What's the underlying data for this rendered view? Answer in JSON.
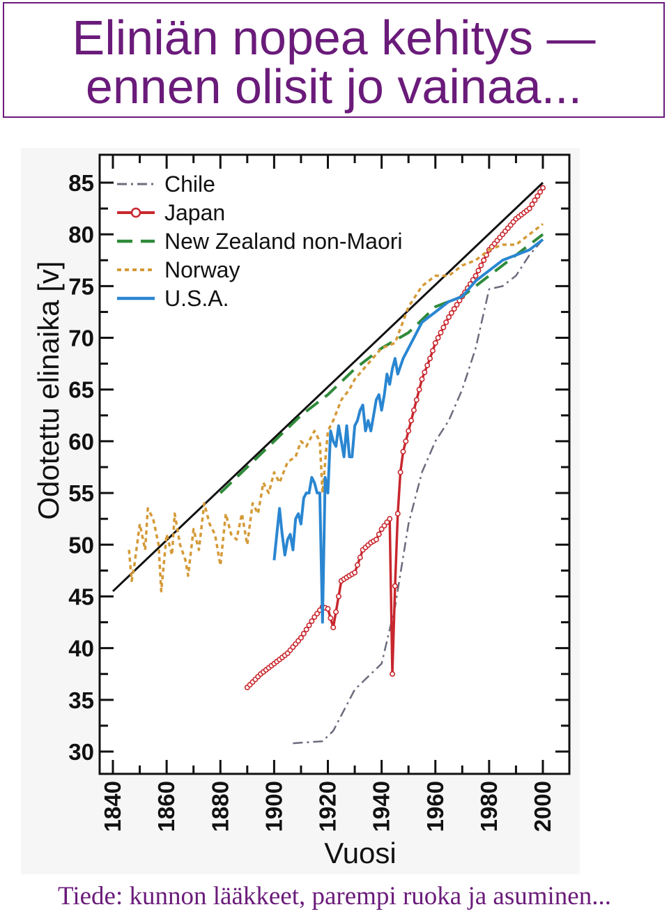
{
  "header": {
    "title_line1": "Eliniän nopea kehitys —",
    "title_line2": "ennen olisit jo vainaa..."
  },
  "footer": {
    "text": "Tiede: kunnon lääkkeet, parempi ruoka ja asuminen..."
  },
  "colors": {
    "title": "#6a1b7a",
    "chile": "#6b6b7d",
    "japan": "#c8272e",
    "new_zealand": "#2f8a3a",
    "norway": "#d49a38",
    "usa": "#2a86d1",
    "trend": "#111111"
  },
  "chart_data": {
    "type": "line",
    "title": "",
    "xlabel": "Vuosi",
    "ylabel": "Odotettu elinaika [v]",
    "xlim": [
      1835,
      2010
    ],
    "ylim": [
      28,
      87
    ],
    "xticks": [
      1840,
      1860,
      1880,
      1900,
      1920,
      1940,
      1960,
      1980,
      2000
    ],
    "yticks": [
      30,
      35,
      40,
      45,
      50,
      55,
      60,
      65,
      70,
      75,
      80,
      85
    ],
    "grid": false,
    "legend_position": "top-left",
    "series": [
      {
        "name": "Chile",
        "style": "dashdot",
        "color": "#6b6b7d",
        "x": [
          1907,
          1918,
          1922,
          1930,
          1940,
          1945,
          1950,
          1955,
          1960,
          1965,
          1970,
          1975,
          1980,
          1985,
          1990,
          1995,
          2000
        ],
        "y": [
          30.8,
          31,
          32,
          36,
          38.5,
          44,
          52,
          57,
          60,
          62,
          65,
          69,
          74.7,
          75,
          76,
          78,
          79.5
        ]
      },
      {
        "name": "Japan",
        "style": "line-circles",
        "color": "#c8272e",
        "x": [
          1890,
          1895,
          1900,
          1905,
          1910,
          1915,
          1918,
          1920,
          1922,
          1925,
          1928,
          1930,
          1933,
          1936,
          1938,
          1940,
          1943,
          1944,
          1945,
          1946,
          1947,
          1948,
          1950,
          1952,
          1955,
          1958,
          1960,
          1963,
          1965,
          1970,
          1975,
          1980,
          1985,
          1990,
          1995,
          2000
        ],
        "y": [
          36.2,
          37.5,
          38.5,
          39.5,
          41,
          43,
          44,
          43.8,
          42,
          46.5,
          47,
          47.3,
          49.5,
          50.2,
          50.5,
          51.5,
          52.5,
          37.5,
          46,
          53,
          57,
          59,
          61,
          63,
          66,
          68,
          69.5,
          71,
          72,
          74,
          76,
          78.5,
          80,
          81.5,
          82.5,
          84.5
        ]
      },
      {
        "name": "New Zealand non-Maori",
        "style": "dashed",
        "color": "#2f8a3a",
        "x": [
          1880,
          1890,
          1900,
          1910,
          1920,
          1930,
          1940,
          1950,
          1960,
          1970,
          1980,
          1990,
          2000
        ],
        "y": [
          55,
          57.5,
          60,
          62.5,
          64.5,
          67,
          69,
          70.5,
          73,
          74,
          76,
          78,
          80
        ]
      },
      {
        "name": "Norway",
        "style": "dotted",
        "color": "#d49a38",
        "x": [
          1846,
          1847,
          1848,
          1850,
          1852,
          1853,
          1855,
          1857,
          1858,
          1860,
          1862,
          1863,
          1865,
          1867,
          1868,
          1870,
          1872,
          1874,
          1876,
          1878,
          1880,
          1882,
          1884,
          1886,
          1888,
          1890,
          1892,
          1894,
          1896,
          1898,
          1900,
          1902,
          1905,
          1908,
          1910,
          1912,
          1915,
          1917,
          1918,
          1920,
          1922,
          1925,
          1928,
          1930,
          1935,
          1940,
          1945,
          1950,
          1955,
          1960,
          1965,
          1970,
          1975,
          1980,
          1985,
          1990,
          1995,
          2000
        ],
        "y": [
          49.5,
          46.5,
          48,
          52,
          49.5,
          53.5,
          52.5,
          50,
          45.5,
          51,
          49,
          53,
          50,
          48.5,
          47,
          51.5,
          49.5,
          54,
          52,
          51,
          48,
          53,
          51,
          50.5,
          53,
          50,
          54,
          53,
          56,
          55,
          57,
          56,
          58,
          58.5,
          60,
          59.5,
          61,
          60,
          55,
          61,
          62,
          64,
          65,
          66,
          67.5,
          69,
          69.5,
          73,
          75,
          76,
          76,
          77,
          77.5,
          78.5,
          79,
          79,
          80,
          81
        ]
      },
      {
        "name": "U.S.A.",
        "style": "solid",
        "color": "#2a86d1",
        "x": [
          1900,
          1901,
          1902,
          1903,
          1904,
          1905,
          1906,
          1907,
          1908,
          1909,
          1910,
          1911,
          1912,
          1913,
          1914,
          1915,
          1916,
          1917,
          1918,
          1919,
          1920,
          1921,
          1922,
          1923,
          1924,
          1925,
          1926,
          1927,
          1928,
          1929,
          1930,
          1931,
          1932,
          1933,
          1934,
          1935,
          1936,
          1937,
          1938,
          1939,
          1940,
          1941,
          1942,
          1943,
          1944,
          1945,
          1946,
          1948,
          1950,
          1955,
          1960,
          1965,
          1970,
          1975,
          1980,
          1985,
          1990,
          1995,
          2000
        ],
        "y": [
          48.5,
          51,
          53.5,
          51,
          49,
          50.5,
          51,
          49.5,
          52.5,
          53,
          52,
          54.5,
          55,
          55,
          56.5,
          56,
          55,
          55,
          42.5,
          56.5,
          55,
          61,
          60,
          59.5,
          61.5,
          60,
          58.5,
          61.5,
          58.5,
          58.5,
          61.5,
          62,
          63,
          63.5,
          61,
          62,
          61,
          62.5,
          64,
          64.5,
          63,
          64.5,
          66.5,
          65.5,
          67,
          68,
          66.5,
          68,
          69,
          71.5,
          72.5,
          73.5,
          74,
          75.5,
          76.5,
          77.5,
          78,
          78.5,
          79.5
        ]
      }
    ],
    "trend_line": {
      "color": "#111111",
      "x": [
        1840,
        2000
      ],
      "y": [
        45.5,
        85
      ]
    }
  }
}
